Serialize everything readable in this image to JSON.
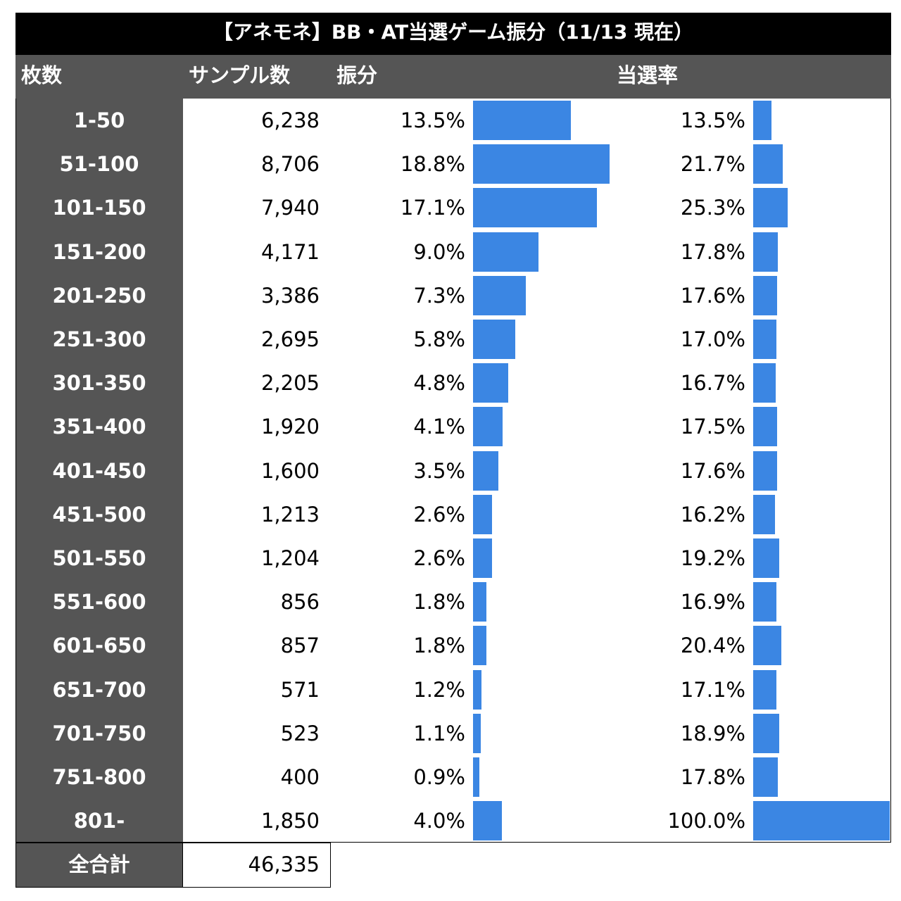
{
  "title": "【アネモネ】BB・AT当選ゲーム振分（11/13 現在）",
  "headers": [
    "枚数",
    "サンプル数",
    "振分",
    "当選率"
  ],
  "rows": [
    {
      "range": "1-50",
      "samples": "6,238",
      "share": {
        "value": 13.5,
        "label": "13.5%"
      },
      "rate": {
        "value": 13.5,
        "label": "13.5%"
      }
    },
    {
      "range": "51-100",
      "samples": "8,706",
      "share": {
        "value": 18.8,
        "label": "18.8%"
      },
      "rate": {
        "value": 21.7,
        "label": "21.7%"
      }
    },
    {
      "range": "101-150",
      "samples": "7,940",
      "share": {
        "value": 17.1,
        "label": "17.1%"
      },
      "rate": {
        "value": 25.3,
        "label": "25.3%"
      }
    },
    {
      "range": "151-200",
      "samples": "4,171",
      "share": {
        "value": 9.0,
        "label": "9.0%"
      },
      "rate": {
        "value": 17.8,
        "label": "17.8%"
      }
    },
    {
      "range": "201-250",
      "samples": "3,386",
      "share": {
        "value": 7.3,
        "label": "7.3%"
      },
      "rate": {
        "value": 17.6,
        "label": "17.6%"
      }
    },
    {
      "range": "251-300",
      "samples": "2,695",
      "share": {
        "value": 5.8,
        "label": "5.8%"
      },
      "rate": {
        "value": 17.0,
        "label": "17.0%"
      }
    },
    {
      "range": "301-350",
      "samples": "2,205",
      "share": {
        "value": 4.8,
        "label": "4.8%"
      },
      "rate": {
        "value": 16.7,
        "label": "16.7%"
      }
    },
    {
      "range": "351-400",
      "samples": "1,920",
      "share": {
        "value": 4.1,
        "label": "4.1%"
      },
      "rate": {
        "value": 17.5,
        "label": "17.5%"
      }
    },
    {
      "range": "401-450",
      "samples": "1,600",
      "share": {
        "value": 3.5,
        "label": "3.5%"
      },
      "rate": {
        "value": 17.6,
        "label": "17.6%"
      }
    },
    {
      "range": "451-500",
      "samples": "1,213",
      "share": {
        "value": 2.6,
        "label": "2.6%"
      },
      "rate": {
        "value": 16.2,
        "label": "16.2%"
      }
    },
    {
      "range": "501-550",
      "samples": "1,204",
      "share": {
        "value": 2.6,
        "label": "2.6%"
      },
      "rate": {
        "value": 19.2,
        "label": "19.2%"
      }
    },
    {
      "range": "551-600",
      "samples": "856",
      "share": {
        "value": 1.8,
        "label": "1.8%"
      },
      "rate": {
        "value": 16.9,
        "label": "16.9%"
      }
    },
    {
      "range": "601-650",
      "samples": "857",
      "share": {
        "value": 1.8,
        "label": "1.8%"
      },
      "rate": {
        "value": 20.4,
        "label": "20.4%"
      }
    },
    {
      "range": "651-700",
      "samples": "571",
      "share": {
        "value": 1.2,
        "label": "1.2%"
      },
      "rate": {
        "value": 17.1,
        "label": "17.1%"
      }
    },
    {
      "range": "701-750",
      "samples": "523",
      "share": {
        "value": 1.1,
        "label": "1.1%"
      },
      "rate": {
        "value": 18.9,
        "label": "18.9%"
      }
    },
    {
      "range": "751-800",
      "samples": "400",
      "share": {
        "value": 0.9,
        "label": "0.9%"
      },
      "rate": {
        "value": 17.8,
        "label": "17.8%"
      }
    },
    {
      "range": "801-",
      "samples": "1,850",
      "share": {
        "value": 4.0,
        "label": "4.0%"
      },
      "rate": {
        "value": 100.0,
        "label": "100.0%"
      }
    }
  ],
  "total": {
    "label": "全合計",
    "value": "46,335"
  },
  "bar_color": "#3b86e3"
}
